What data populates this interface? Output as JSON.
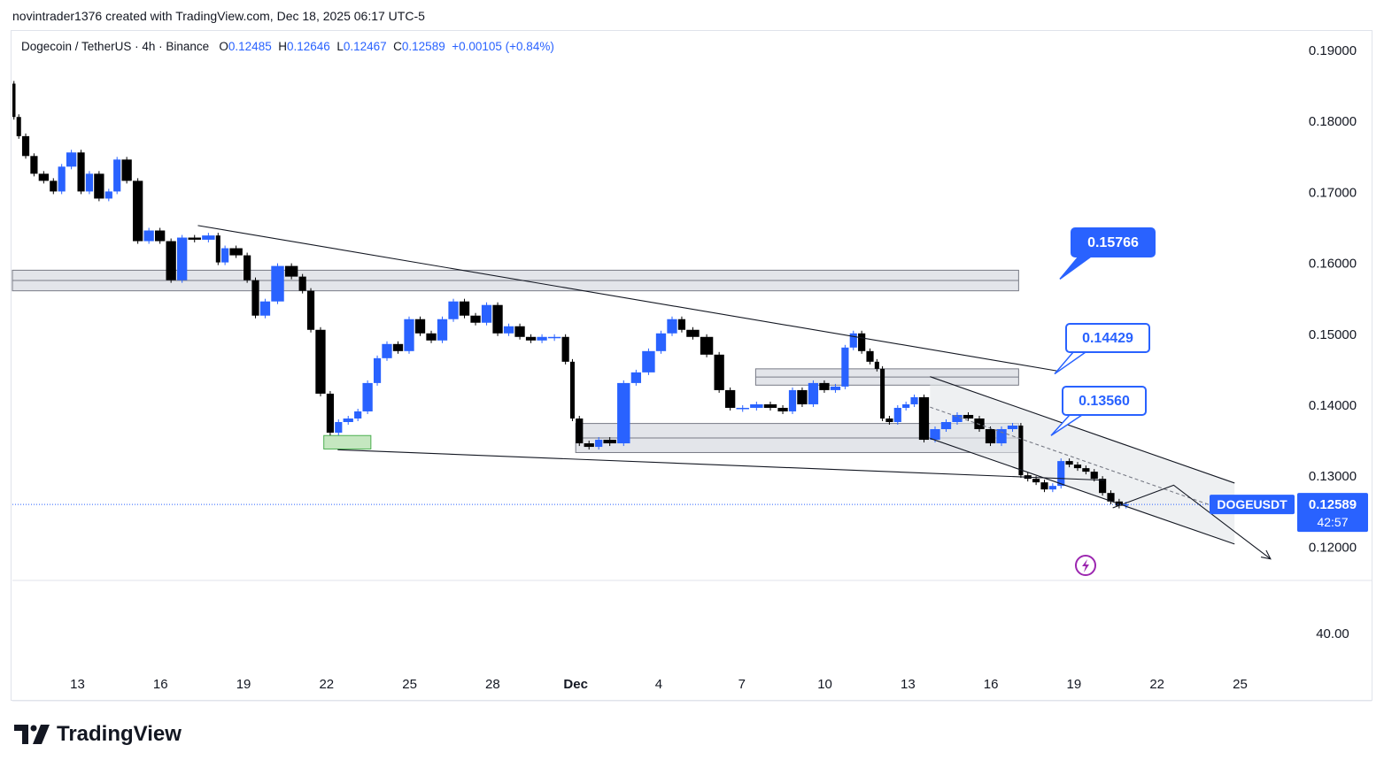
{
  "header": {
    "caption": "novintrader1376 created with TradingView.com, Dec 18, 2025 06:17 UTC-5"
  },
  "symbol_info": {
    "title": "Dogecoin / TetherUS · 4h · Binance",
    "o_label": "O",
    "o_value": "0.12485",
    "h_label": "H",
    "h_value": "0.12646",
    "l_label": "L",
    "l_value": "0.12467",
    "c_label": "C",
    "c_value": "0.12589",
    "change": "+0.00105 (+0.84%)"
  },
  "footer": {
    "brand": "TradingView"
  },
  "colors": {
    "up": "#2962ff",
    "down": "#000000",
    "label_bg": "#2962ff",
    "zone_fill": "#d1d4dc",
    "green_zone": "#b7e1b0",
    "signal": "#9c27b0"
  },
  "chart_data": {
    "type": "candlestick",
    "title": "Dogecoin / TetherUS · 4h · Binance",
    "ylim": [
      0.1153,
      0.1925
    ],
    "yticks": [
      "0.19000",
      "0.18000",
      "0.17000",
      "0.16000",
      "0.15000",
      "0.14000",
      "0.13000",
      "0.12000"
    ],
    "ytick_values": [
      0.19,
      0.18,
      0.17,
      0.16,
      0.15,
      0.14,
      0.13,
      0.12
    ],
    "xlabels": [
      "13",
      "16",
      "19",
      "22",
      "25",
      "28",
      "Dec",
      "4",
      "7",
      "10",
      "13",
      "16",
      "19",
      "22",
      "25"
    ],
    "x_day_index": [
      0,
      3,
      6,
      9,
      12,
      15,
      18,
      21,
      24,
      27,
      30,
      33,
      36,
      39,
      42
    ],
    "x_range_days": [
      -2.35,
      44.0
    ],
    "series_path": [
      [
        -2.35,
        0.1852
      ],
      [
        -2.2,
        0.1805
      ],
      [
        -2.0,
        0.1778
      ],
      [
        -1.7,
        0.175
      ],
      [
        -1.4,
        0.1725
      ],
      [
        -1.0,
        0.1715
      ],
      [
        -0.7,
        0.17
      ],
      [
        -0.4,
        0.1735
      ],
      [
        0.0,
        0.1755
      ],
      [
        0.3,
        0.17
      ],
      [
        0.6,
        0.1725
      ],
      [
        1.0,
        0.169
      ],
      [
        1.3,
        0.17
      ],
      [
        1.6,
        0.1745
      ],
      [
        2.0,
        0.1715
      ],
      [
        2.4,
        0.163
      ],
      [
        2.8,
        0.1645
      ],
      [
        3.2,
        0.163
      ],
      [
        3.6,
        0.1575
      ],
      [
        4.0,
        0.1635
      ],
      [
        4.5,
        0.1632
      ],
      [
        5.0,
        0.1638
      ],
      [
        5.2,
        0.16
      ],
      [
        5.5,
        0.162
      ],
      [
        6.0,
        0.161
      ],
      [
        6.3,
        0.1575
      ],
      [
        6.6,
        0.1525
      ],
      [
        7.0,
        0.1545
      ],
      [
        7.5,
        0.1595
      ],
      [
        8.0,
        0.158
      ],
      [
        8.3,
        0.156
      ],
      [
        8.6,
        0.1505
      ],
      [
        9.0,
        0.1415
      ],
      [
        9.3,
        0.136
      ],
      [
        9.6,
        0.1375
      ],
      [
        10.0,
        0.138
      ],
      [
        10.3,
        0.139
      ],
      [
        10.7,
        0.143
      ],
      [
        11.0,
        0.1465
      ],
      [
        11.4,
        0.1485
      ],
      [
        11.8,
        0.1475
      ],
      [
        12.2,
        0.152
      ],
      [
        12.6,
        0.15
      ],
      [
        13.0,
        0.149
      ],
      [
        13.4,
        0.152
      ],
      [
        13.8,
        0.1545
      ],
      [
        14.2,
        0.1525
      ],
      [
        14.6,
        0.1515
      ],
      [
        15.0,
        0.154
      ],
      [
        15.4,
        0.15
      ],
      [
        15.8,
        0.151
      ],
      [
        16.2,
        0.1495
      ],
      [
        16.6,
        0.149
      ],
      [
        17.0,
        0.1495
      ],
      [
        17.5,
        0.1495
      ],
      [
        17.8,
        0.146
      ],
      [
        18.0,
        0.138
      ],
      [
        18.3,
        0.1345
      ],
      [
        18.7,
        0.134
      ],
      [
        19.0,
        0.135
      ],
      [
        19.5,
        0.1345
      ],
      [
        20.0,
        0.143
      ],
      [
        20.4,
        0.1445
      ],
      [
        20.9,
        0.1475
      ],
      [
        21.3,
        0.15
      ],
      [
        21.7,
        0.152
      ],
      [
        22.0,
        0.1505
      ],
      [
        22.5,
        0.1495
      ],
      [
        23.0,
        0.147
      ],
      [
        23.4,
        0.142
      ],
      [
        23.8,
        0.1395
      ],
      [
        24.3,
        0.1395
      ],
      [
        24.8,
        0.14
      ],
      [
        25.3,
        0.1395
      ],
      [
        25.7,
        0.139
      ],
      [
        26.0,
        0.142
      ],
      [
        26.4,
        0.14
      ],
      [
        26.8,
        0.143
      ],
      [
        27.2,
        0.142
      ],
      [
        27.6,
        0.1425
      ],
      [
        27.9,
        0.148
      ],
      [
        28.2,
        0.15
      ],
      [
        28.5,
        0.1475
      ],
      [
        28.8,
        0.146
      ],
      [
        29.0,
        0.145
      ],
      [
        29.2,
        0.138
      ],
      [
        29.5,
        0.1375
      ],
      [
        29.8,
        0.1395
      ],
      [
        30.1,
        0.14
      ],
      [
        30.4,
        0.141
      ],
      [
        30.8,
        0.135
      ],
      [
        31.2,
        0.1365
      ],
      [
        31.6,
        0.1375
      ],
      [
        32.0,
        0.1385
      ],
      [
        32.4,
        0.138
      ],
      [
        32.8,
        0.1365
      ],
      [
        33.2,
        0.1345
      ],
      [
        33.6,
        0.1365
      ],
      [
        34.0,
        0.137
      ],
      [
        34.2,
        0.13
      ],
      [
        34.5,
        0.1295
      ],
      [
        34.8,
        0.129
      ],
      [
        35.1,
        0.128
      ],
      [
        35.4,
        0.1285
      ],
      [
        35.7,
        0.132
      ],
      [
        36.0,
        0.1315
      ],
      [
        36.3,
        0.131
      ],
      [
        36.6,
        0.1305
      ],
      [
        36.9,
        0.1295
      ],
      [
        37.2,
        0.1275
      ],
      [
        37.5,
        0.1263
      ],
      [
        37.8,
        0.1257
      ],
      [
        38.0,
        0.1259
      ]
    ],
    "current_price": 0.12589,
    "current_price_label": "0.12589",
    "symbol_tag": "DOGEUSDT",
    "countdown": "42:57",
    "price_labels": [
      {
        "text": "0.15766",
        "price": 0.15766
      },
      {
        "text": "0.14429",
        "price": 0.14429
      },
      {
        "text": "0.13560",
        "price": 0.1356
      }
    ],
    "zones": [
      {
        "name": "resistance-zone-high",
        "x0": -2.35,
        "x1": 34.0,
        "y_top": 0.1589,
        "y_bottom": 0.156
      },
      {
        "name": "resistance-zone-mid",
        "x0": 24.5,
        "x1": 34.0,
        "y_top": 0.145,
        "y_bottom": 0.1427
      },
      {
        "name": "support-zone",
        "x0": 18.0,
        "x1": 34.0,
        "y_top": 0.1373,
        "y_bottom": 0.1332
      },
      {
        "name": "demand-zone-green",
        "x0": 8.9,
        "x1": 10.6,
        "y_top": 0.1356,
        "y_bottom": 0.1337
      }
    ],
    "trendlines": [
      {
        "name": "descending-resistance-line",
        "points": [
          [
            4.35,
            0.1652
          ],
          [
            35.4,
            0.1447
          ]
        ]
      },
      {
        "name": "descending-support-line",
        "points": [
          [
            9.4,
            0.1336
          ],
          [
            37.1,
            0.1293
          ]
        ]
      },
      {
        "name": "channel-upper-line",
        "points": [
          [
            30.8,
            0.1439
          ],
          [
            41.8,
            0.1289
          ]
        ]
      },
      {
        "name": "channel-lower-line",
        "points": [
          [
            30.8,
            0.1352
          ],
          [
            41.8,
            0.1203
          ]
        ]
      },
      {
        "name": "channel-mid-line",
        "points": [
          [
            30.8,
            0.1396
          ],
          [
            41.8,
            0.1246
          ]
        ]
      },
      {
        "name": "projection-path",
        "points": [
          [
            37.4,
            0.1254
          ],
          [
            39.6,
            0.1286
          ],
          [
            43.1,
            0.1182
          ]
        ]
      }
    ],
    "channel_fill": [
      [
        30.8,
        0.1439
      ],
      [
        41.8,
        0.1289
      ],
      [
        41.8,
        0.1203
      ],
      [
        30.8,
        0.1352
      ]
    ],
    "indicator_pane": {
      "tick": "40.00",
      "tick_value": 40
    }
  }
}
